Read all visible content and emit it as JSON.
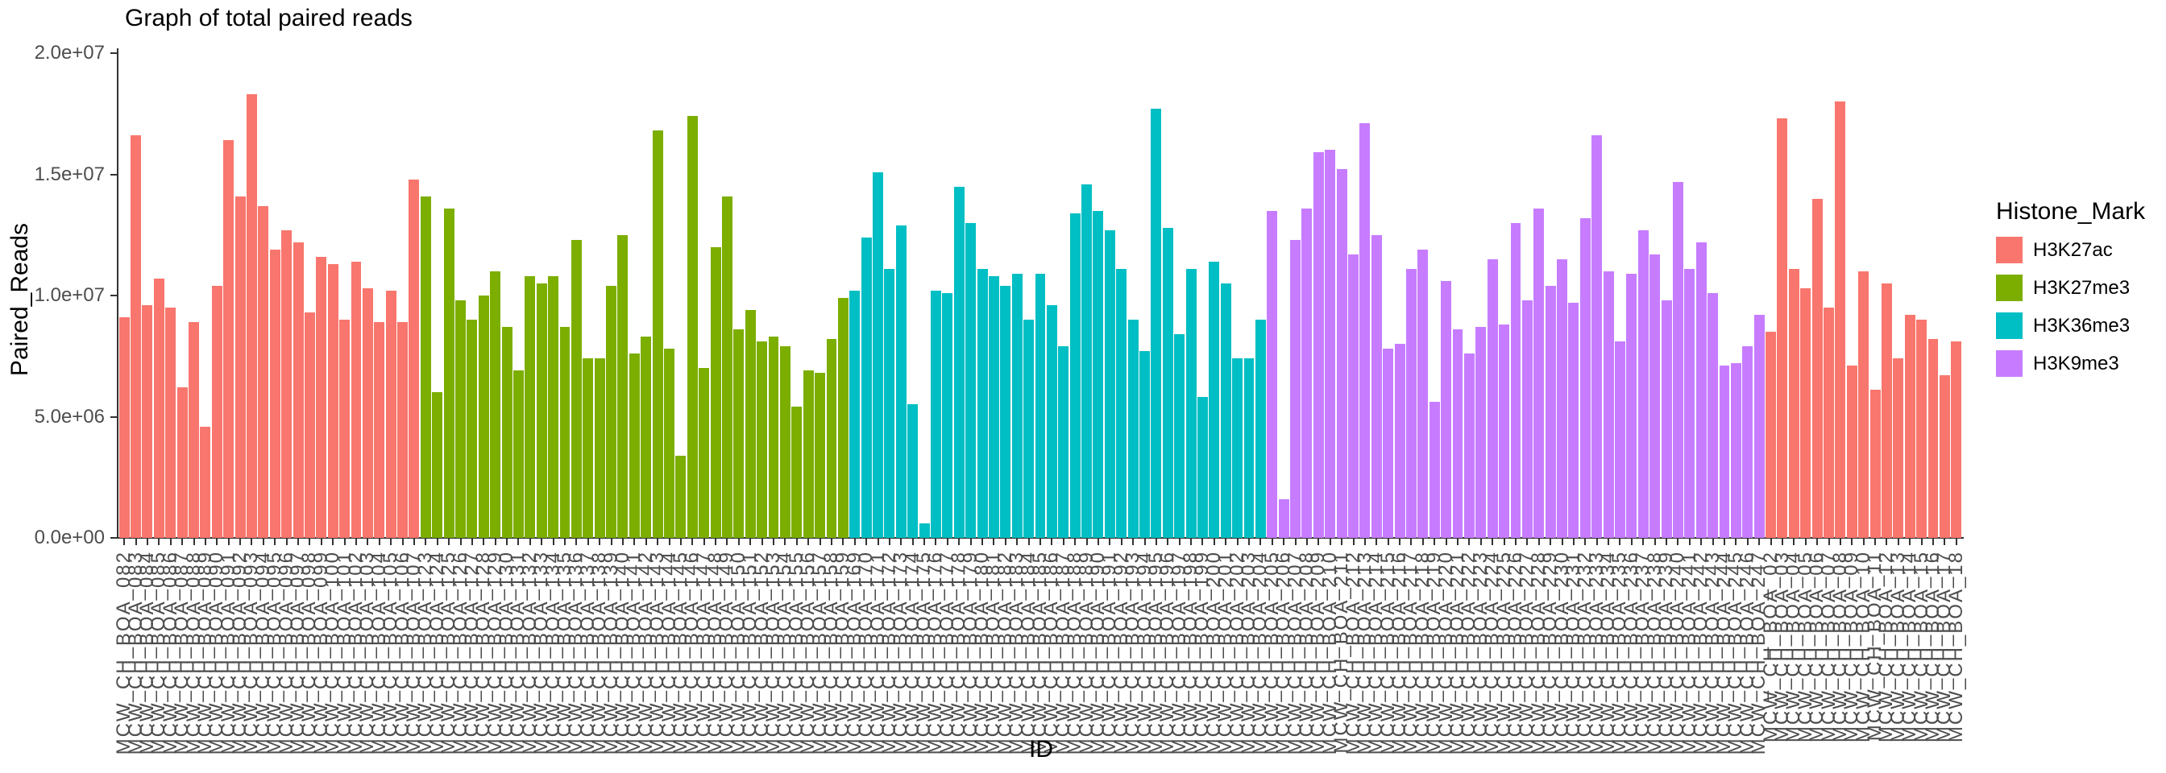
{
  "chart_data": {
    "type": "bar",
    "title": "Graph of total paired reads",
    "xlabel": "ID",
    "ylabel": "Paired_Reads",
    "ylim": [
      0,
      20000000
    ],
    "yticks": [
      {
        "value": 0,
        "label": "0.0e+00"
      },
      {
        "value": 5000000,
        "label": "5.0e+06"
      },
      {
        "value": 10000000,
        "label": "1.0e+07"
      },
      {
        "value": 15000000,
        "label": "1.5e+07"
      },
      {
        "value": 20000000,
        "label": "2.0e+07"
      }
    ],
    "grid": false,
    "legend_position": "right",
    "legend_title": "Histone_Mark",
    "marks": [
      {
        "name": "H3K27ac",
        "color": "#F8766D"
      },
      {
        "name": "H3K27me3",
        "color": "#7CAE00"
      },
      {
        "name": "H3K36me3",
        "color": "#00BFC4"
      },
      {
        "name": "H3K9me3",
        "color": "#C77CFF"
      }
    ],
    "bars": [
      {
        "label": "MCW_CH_BOA_082",
        "value": 9100000,
        "mark": "H3K27ac"
      },
      {
        "label": "MCW_CH_BOA_083",
        "value": 16600000,
        "mark": "H3K27ac"
      },
      {
        "label": "MCW_CH_BOA_084",
        "value": 9600000,
        "mark": "H3K27ac"
      },
      {
        "label": "MCW_CH_BOA_085",
        "value": 10700000,
        "mark": "H3K27ac"
      },
      {
        "label": "MCW_CH_BOA_086",
        "value": 9500000,
        "mark": "H3K27ac"
      },
      {
        "label": "MCW_CH_BOA_087",
        "value": 6200000,
        "mark": "H3K27ac"
      },
      {
        "label": "MCW_CH_BOA_088",
        "value": 8900000,
        "mark": "H3K27ac"
      },
      {
        "label": "MCW_CH_BOA_089",
        "value": 4600000,
        "mark": "H3K27ac"
      },
      {
        "label": "MCW_CH_BOA_090",
        "value": 10400000,
        "mark": "H3K27ac"
      },
      {
        "label": "MCW_CH_BOA_091",
        "value": 16400000,
        "mark": "H3K27ac"
      },
      {
        "label": "MCW_CH_BOA_092",
        "value": 14100000,
        "mark": "H3K27ac"
      },
      {
        "label": "MCW_CH_BOA_093",
        "value": 18300000,
        "mark": "H3K27ac"
      },
      {
        "label": "MCW_CH_BOA_094",
        "value": 13700000,
        "mark": "H3K27ac"
      },
      {
        "label": "MCW_CH_BOA_095",
        "value": 11900000,
        "mark": "H3K27ac"
      },
      {
        "label": "MCW_CH_BOA_096",
        "value": 12700000,
        "mark": "H3K27ac"
      },
      {
        "label": "MCW_CH_BOA_097",
        "value": 12200000,
        "mark": "H3K27ac"
      },
      {
        "label": "MCW_CH_BOA_098",
        "value": 9300000,
        "mark": "H3K27ac"
      },
      {
        "label": "MCW_CH_BOA_099",
        "value": 11600000,
        "mark": "H3K27ac"
      },
      {
        "label": "MCW_CH_BOA_100",
        "value": 11300000,
        "mark": "H3K27ac"
      },
      {
        "label": "MCW_CH_BOA_101",
        "value": 9000000,
        "mark": "H3K27ac"
      },
      {
        "label": "MCW_CH_BOA_102",
        "value": 11400000,
        "mark": "H3K27ac"
      },
      {
        "label": "MCW_CH_BOA_103",
        "value": 10300000,
        "mark": "H3K27ac"
      },
      {
        "label": "MCW_CH_BOA_104",
        "value": 8900000,
        "mark": "H3K27ac"
      },
      {
        "label": "MCW_CH_BOA_105",
        "value": 10200000,
        "mark": "H3K27ac"
      },
      {
        "label": "MCW_CH_BOA_106",
        "value": 8900000,
        "mark": "H3K27ac"
      },
      {
        "label": "MCW_CH_BOA_107",
        "value": 14800000,
        "mark": "H3K27ac"
      },
      {
        "label": "MCW_CH_BOA_123",
        "value": 14100000,
        "mark": "H3K27me3"
      },
      {
        "label": "MCW_CH_BOA_124",
        "value": 6000000,
        "mark": "H3K27me3"
      },
      {
        "label": "MCW_CH_BOA_125",
        "value": 13600000,
        "mark": "H3K27me3"
      },
      {
        "label": "MCW_CH_BOA_126",
        "value": 9800000,
        "mark": "H3K27me3"
      },
      {
        "label": "MCW_CH_BOA_127",
        "value": 9000000,
        "mark": "H3K27me3"
      },
      {
        "label": "MCW_CH_BOA_128",
        "value": 10000000,
        "mark": "H3K27me3"
      },
      {
        "label": "MCW_CH_BOA_129",
        "value": 11000000,
        "mark": "H3K27me3"
      },
      {
        "label": "MCW_CH_BOA_130",
        "value": 8700000,
        "mark": "H3K27me3"
      },
      {
        "label": "MCW_CH_BOA_131",
        "value": 6900000,
        "mark": "H3K27me3"
      },
      {
        "label": "MCW_CH_BOA_132",
        "value": 10800000,
        "mark": "H3K27me3"
      },
      {
        "label": "MCW_CH_BOA_133",
        "value": 10500000,
        "mark": "H3K27me3"
      },
      {
        "label": "MCW_CH_BOA_134",
        "value": 10800000,
        "mark": "H3K27me3"
      },
      {
        "label": "MCW_CH_BOA_135",
        "value": 8700000,
        "mark": "H3K27me3"
      },
      {
        "label": "MCW_CH_BOA_136",
        "value": 12300000,
        "mark": "H3K27me3"
      },
      {
        "label": "MCW_CH_BOA_137",
        "value": 7400000,
        "mark": "H3K27me3"
      },
      {
        "label": "MCW_CH_BOA_138",
        "value": 7400000,
        "mark": "H3K27me3"
      },
      {
        "label": "MCW_CH_BOA_139",
        "value": 10400000,
        "mark": "H3K27me3"
      },
      {
        "label": "MCW_CH_BOA_140",
        "value": 12500000,
        "mark": "H3K27me3"
      },
      {
        "label": "MCW_CH_BOA_141",
        "value": 7600000,
        "mark": "H3K27me3"
      },
      {
        "label": "MCW_CH_BOA_142",
        "value": 8300000,
        "mark": "H3K27me3"
      },
      {
        "label": "MCW_CH_BOA_143",
        "value": 16800000,
        "mark": "H3K27me3"
      },
      {
        "label": "MCW_CH_BOA_144",
        "value": 7800000,
        "mark": "H3K27me3"
      },
      {
        "label": "MCW_CH_BOA_145",
        "value": 3400000,
        "mark": "H3K27me3"
      },
      {
        "label": "MCW_CH_BOA_146",
        "value": 17400000,
        "mark": "H3K27me3"
      },
      {
        "label": "MCW_CH_BOA_147",
        "value": 7000000,
        "mark": "H3K27me3"
      },
      {
        "label": "MCW_CH_BOA_148",
        "value": 12000000,
        "mark": "H3K27me3"
      },
      {
        "label": "MCW_CH_BOA_149",
        "value": 14100000,
        "mark": "H3K27me3"
      },
      {
        "label": "MCW_CH_BOA_150",
        "value": 8600000,
        "mark": "H3K27me3"
      },
      {
        "label": "MCW_CH_BOA_151",
        "value": 9400000,
        "mark": "H3K27me3"
      },
      {
        "label": "MCW_CH_BOA_152",
        "value": 8100000,
        "mark": "H3K27me3"
      },
      {
        "label": "MCW_CH_BOA_153",
        "value": 8300000,
        "mark": "H3K27me3"
      },
      {
        "label": "MCW_CH_BOA_154",
        "value": 7900000,
        "mark": "H3K27me3"
      },
      {
        "label": "MCW_CH_BOA_155",
        "value": 5400000,
        "mark": "H3K27me3"
      },
      {
        "label": "MCW_CH_BOA_156",
        "value": 6900000,
        "mark": "H3K27me3"
      },
      {
        "label": "MCW_CH_BOA_157",
        "value": 6800000,
        "mark": "H3K27me3"
      },
      {
        "label": "MCW_CH_BOA_158",
        "value": 8200000,
        "mark": "H3K27me3"
      },
      {
        "label": "MCW_CH_BOA_159",
        "value": 9900000,
        "mark": "H3K27me3"
      },
      {
        "label": "MCW_CH_BOA_169",
        "value": 10200000,
        "mark": "H3K36me3"
      },
      {
        "label": "MCW_CH_BOA_170",
        "value": 12400000,
        "mark": "H3K36me3"
      },
      {
        "label": "MCW_CH_BOA_171",
        "value": 15100000,
        "mark": "H3K36me3"
      },
      {
        "label": "MCW_CH_BOA_172",
        "value": 11100000,
        "mark": "H3K36me3"
      },
      {
        "label": "MCW_CH_BOA_173",
        "value": 12900000,
        "mark": "H3K36me3"
      },
      {
        "label": "MCW_CH_BOA_174",
        "value": 5500000,
        "mark": "H3K36me3"
      },
      {
        "label": "MCW_CH_BOA_175",
        "value": 600000,
        "mark": "H3K36me3"
      },
      {
        "label": "MCW_CH_BOA_176",
        "value": 10200000,
        "mark": "H3K36me3"
      },
      {
        "label": "MCW_CH_BOA_177",
        "value": 10100000,
        "mark": "H3K36me3"
      },
      {
        "label": "MCW_CH_BOA_178",
        "value": 14500000,
        "mark": "H3K36me3"
      },
      {
        "label": "MCW_CH_BOA_179",
        "value": 13000000,
        "mark": "H3K36me3"
      },
      {
        "label": "MCW_CH_BOA_180",
        "value": 11100000,
        "mark": "H3K36me3"
      },
      {
        "label": "MCW_CH_BOA_181",
        "value": 10800000,
        "mark": "H3K36me3"
      },
      {
        "label": "MCW_CH_BOA_182",
        "value": 10400000,
        "mark": "H3K36me3"
      },
      {
        "label": "MCW_CH_BOA_183",
        "value": 10900000,
        "mark": "H3K36me3"
      },
      {
        "label": "MCW_CH_BOA_184",
        "value": 9000000,
        "mark": "H3K36me3"
      },
      {
        "label": "MCW_CH_BOA_185",
        "value": 10900000,
        "mark": "H3K36me3"
      },
      {
        "label": "MCW_CH_BOA_186",
        "value": 9600000,
        "mark": "H3K36me3"
      },
      {
        "label": "MCW_CH_BOA_187",
        "value": 7900000,
        "mark": "H3K36me3"
      },
      {
        "label": "MCW_CH_BOA_188",
        "value": 13400000,
        "mark": "H3K36me3"
      },
      {
        "label": "MCW_CH_BOA_189",
        "value": 14600000,
        "mark": "H3K36me3"
      },
      {
        "label": "MCW_CH_BOA_190",
        "value": 13500000,
        "mark": "H3K36me3"
      },
      {
        "label": "MCW_CH_BOA_191",
        "value": 12700000,
        "mark": "H3K36me3"
      },
      {
        "label": "MCW_CH_BOA_192",
        "value": 11100000,
        "mark": "H3K36me3"
      },
      {
        "label": "MCW_CH_BOA_193",
        "value": 9000000,
        "mark": "H3K36me3"
      },
      {
        "label": "MCW_CH_BOA_194",
        "value": 7700000,
        "mark": "H3K36me3"
      },
      {
        "label": "MCW_CH_BOA_195",
        "value": 17700000,
        "mark": "H3K36me3"
      },
      {
        "label": "MCW_CH_BOA_196",
        "value": 12800000,
        "mark": "H3K36me3"
      },
      {
        "label": "MCW_CH_BOA_197",
        "value": 8400000,
        "mark": "H3K36me3"
      },
      {
        "label": "MCW_CH_BOA_198",
        "value": 11100000,
        "mark": "H3K36me3"
      },
      {
        "label": "MCW_CH_BOA_199",
        "value": 5800000,
        "mark": "H3K36me3"
      },
      {
        "label": "MCW_CH_BOA_200",
        "value": 11400000,
        "mark": "H3K36me3"
      },
      {
        "label": "MCW_CH_BOA_201",
        "value": 10500000,
        "mark": "H3K36me3"
      },
      {
        "label": "MCW_CH_BOA_202",
        "value": 7400000,
        "mark": "H3K36me3"
      },
      {
        "label": "MCW_CH_BOA_203",
        "value": 7400000,
        "mark": "H3K36me3"
      },
      {
        "label": "MCW_CH_BOA_204",
        "value": 9000000,
        "mark": "H3K36me3"
      },
      {
        "label": "MCW_CH_BOA_205",
        "value": 13500000,
        "mark": "H3K9me3"
      },
      {
        "label": "MCW_CH_BOA_206",
        "value": 1600000,
        "mark": "H3K9me3"
      },
      {
        "label": "MCW_CH_BOA_207",
        "value": 12300000,
        "mark": "H3K9me3"
      },
      {
        "label": "MCW_CH_BOA_208",
        "value": 13600000,
        "mark": "H3K9me3"
      },
      {
        "label": "MCW_CH_BOA_209",
        "value": 15900000,
        "mark": "H3K9me3"
      },
      {
        "label": "MCW_CH_BOA_210",
        "value": 16000000,
        "mark": "H3K9me3"
      },
      {
        "label": "MCW_CH_BOA_211",
        "value": 15200000,
        "mark": "H3K9me3"
      },
      {
        "label": "MCW_CH_BOA_212",
        "value": 11700000,
        "mark": "H3K9me3"
      },
      {
        "label": "MCW_CH_BOA_213",
        "value": 17100000,
        "mark": "H3K9me3"
      },
      {
        "label": "MCW_CH_BOA_214",
        "value": 12500000,
        "mark": "H3K9me3"
      },
      {
        "label": "MCW_CH_BOA_215",
        "value": 7800000,
        "mark": "H3K9me3"
      },
      {
        "label": "MCW_CH_BOA_216",
        "value": 8000000,
        "mark": "H3K9me3"
      },
      {
        "label": "MCW_CH_BOA_217",
        "value": 11100000,
        "mark": "H3K9me3"
      },
      {
        "label": "MCW_CH_BOA_218",
        "value": 11900000,
        "mark": "H3K9me3"
      },
      {
        "label": "MCW_CH_BOA_219",
        "value": 5600000,
        "mark": "H3K9me3"
      },
      {
        "label": "MCW_CH_BOA_220",
        "value": 10600000,
        "mark": "H3K9me3"
      },
      {
        "label": "MCW_CH_BOA_221",
        "value": 8600000,
        "mark": "H3K9me3"
      },
      {
        "label": "MCW_CH_BOA_222",
        "value": 7600000,
        "mark": "H3K9me3"
      },
      {
        "label": "MCW_CH_BOA_223",
        "value": 8700000,
        "mark": "H3K9me3"
      },
      {
        "label": "MCW_CH_BOA_224",
        "value": 11500000,
        "mark": "H3K9me3"
      },
      {
        "label": "MCW_CH_BOA_225",
        "value": 8800000,
        "mark": "H3K9me3"
      },
      {
        "label": "MCW_CH_BOA_226",
        "value": 13000000,
        "mark": "H3K9me3"
      },
      {
        "label": "MCW_CH_BOA_227",
        "value": 9800000,
        "mark": "H3K9me3"
      },
      {
        "label": "MCW_CH_BOA_228",
        "value": 13600000,
        "mark": "H3K9me3"
      },
      {
        "label": "MCW_CH_BOA_229",
        "value": 10400000,
        "mark": "H3K9me3"
      },
      {
        "label": "MCW_CH_BOA_230",
        "value": 11500000,
        "mark": "H3K9me3"
      },
      {
        "label": "MCW_CH_BOA_231",
        "value": 9700000,
        "mark": "H3K9me3"
      },
      {
        "label": "MCW_CH_BOA_232",
        "value": 13200000,
        "mark": "H3K9me3"
      },
      {
        "label": "MCW_CH_BOA_233",
        "value": 16600000,
        "mark": "H3K9me3"
      },
      {
        "label": "MCW_CH_BOA_234",
        "value": 11000000,
        "mark": "H3K9me3"
      },
      {
        "label": "MCW_CH_BOA_235",
        "value": 8100000,
        "mark": "H3K9me3"
      },
      {
        "label": "MCW_CH_BOA_236",
        "value": 10900000,
        "mark": "H3K9me3"
      },
      {
        "label": "MCW_CH_BOA_237",
        "value": 12700000,
        "mark": "H3K9me3"
      },
      {
        "label": "MCW_CH_BOA_238",
        "value": 11700000,
        "mark": "H3K9me3"
      },
      {
        "label": "MCW_CH_BOA_239",
        "value": 9800000,
        "mark": "H3K9me3"
      },
      {
        "label": "MCW_CH_BOA_240",
        "value": 14700000,
        "mark": "H3K9me3"
      },
      {
        "label": "MCW_CH_BOA_241",
        "value": 11100000,
        "mark": "H3K9me3"
      },
      {
        "label": "MCW_CH_BOA_242",
        "value": 12200000,
        "mark": "H3K9me3"
      },
      {
        "label": "MCW_CH_BOA_243",
        "value": 10100000,
        "mark": "H3K9me3"
      },
      {
        "label": "MCW_CH_BOA_244",
        "value": 7100000,
        "mark": "H3K9me3"
      },
      {
        "label": "MCW_CH_BOA_245",
        "value": 7200000,
        "mark": "H3K9me3"
      },
      {
        "label": "MCW_CH_BOA_246",
        "value": 7900000,
        "mark": "H3K9me3"
      },
      {
        "label": "MCW_CH_BOA_247",
        "value": 9200000,
        "mark": "H3K9me3"
      },
      {
        "label": "MCW_CH_BOA_02",
        "value": 8500000,
        "mark": "H3K27ac"
      },
      {
        "label": "MCW_CH_BOA_03",
        "value": 17300000,
        "mark": "H3K27ac"
      },
      {
        "label": "MCW_CH_BOA_04",
        "value": 11100000,
        "mark": "H3K27ac"
      },
      {
        "label": "MCW_CH_BOA_05",
        "value": 10300000,
        "mark": "H3K27ac"
      },
      {
        "label": "MCW_CH_BOA_06",
        "value": 14000000,
        "mark": "H3K27ac"
      },
      {
        "label": "MCW_CH_BOA_07",
        "value": 9500000,
        "mark": "H3K27ac"
      },
      {
        "label": "MCW_CH_BOA_08",
        "value": 18000000,
        "mark": "H3K27ac"
      },
      {
        "label": "MCW_CH_BOA_09",
        "value": 7100000,
        "mark": "H3K27ac"
      },
      {
        "label": "MCW_CH_BOA_10",
        "value": 11000000,
        "mark": "H3K27ac"
      },
      {
        "label": "MCW_CH_BOA_11",
        "value": 6100000,
        "mark": "H3K27ac"
      },
      {
        "label": "MCW_CH_BOA_12",
        "value": 10500000,
        "mark": "H3K27ac"
      },
      {
        "label": "MCW_CH_BOA_13",
        "value": 7400000,
        "mark": "H3K27ac"
      },
      {
        "label": "MCW_CH_BOA_14",
        "value": 9200000,
        "mark": "H3K27ac"
      },
      {
        "label": "MCW_CH_BOA_15",
        "value": 9000000,
        "mark": "H3K27ac"
      },
      {
        "label": "MCW_CH_BOA_16",
        "value": 8200000,
        "mark": "H3K27ac"
      },
      {
        "label": "MCW_CH_BOA_17",
        "value": 6700000,
        "mark": "H3K27ac"
      },
      {
        "label": "MCW_CH_BOA_18",
        "value": 8100000,
        "mark": "H3K27ac"
      }
    ]
  }
}
